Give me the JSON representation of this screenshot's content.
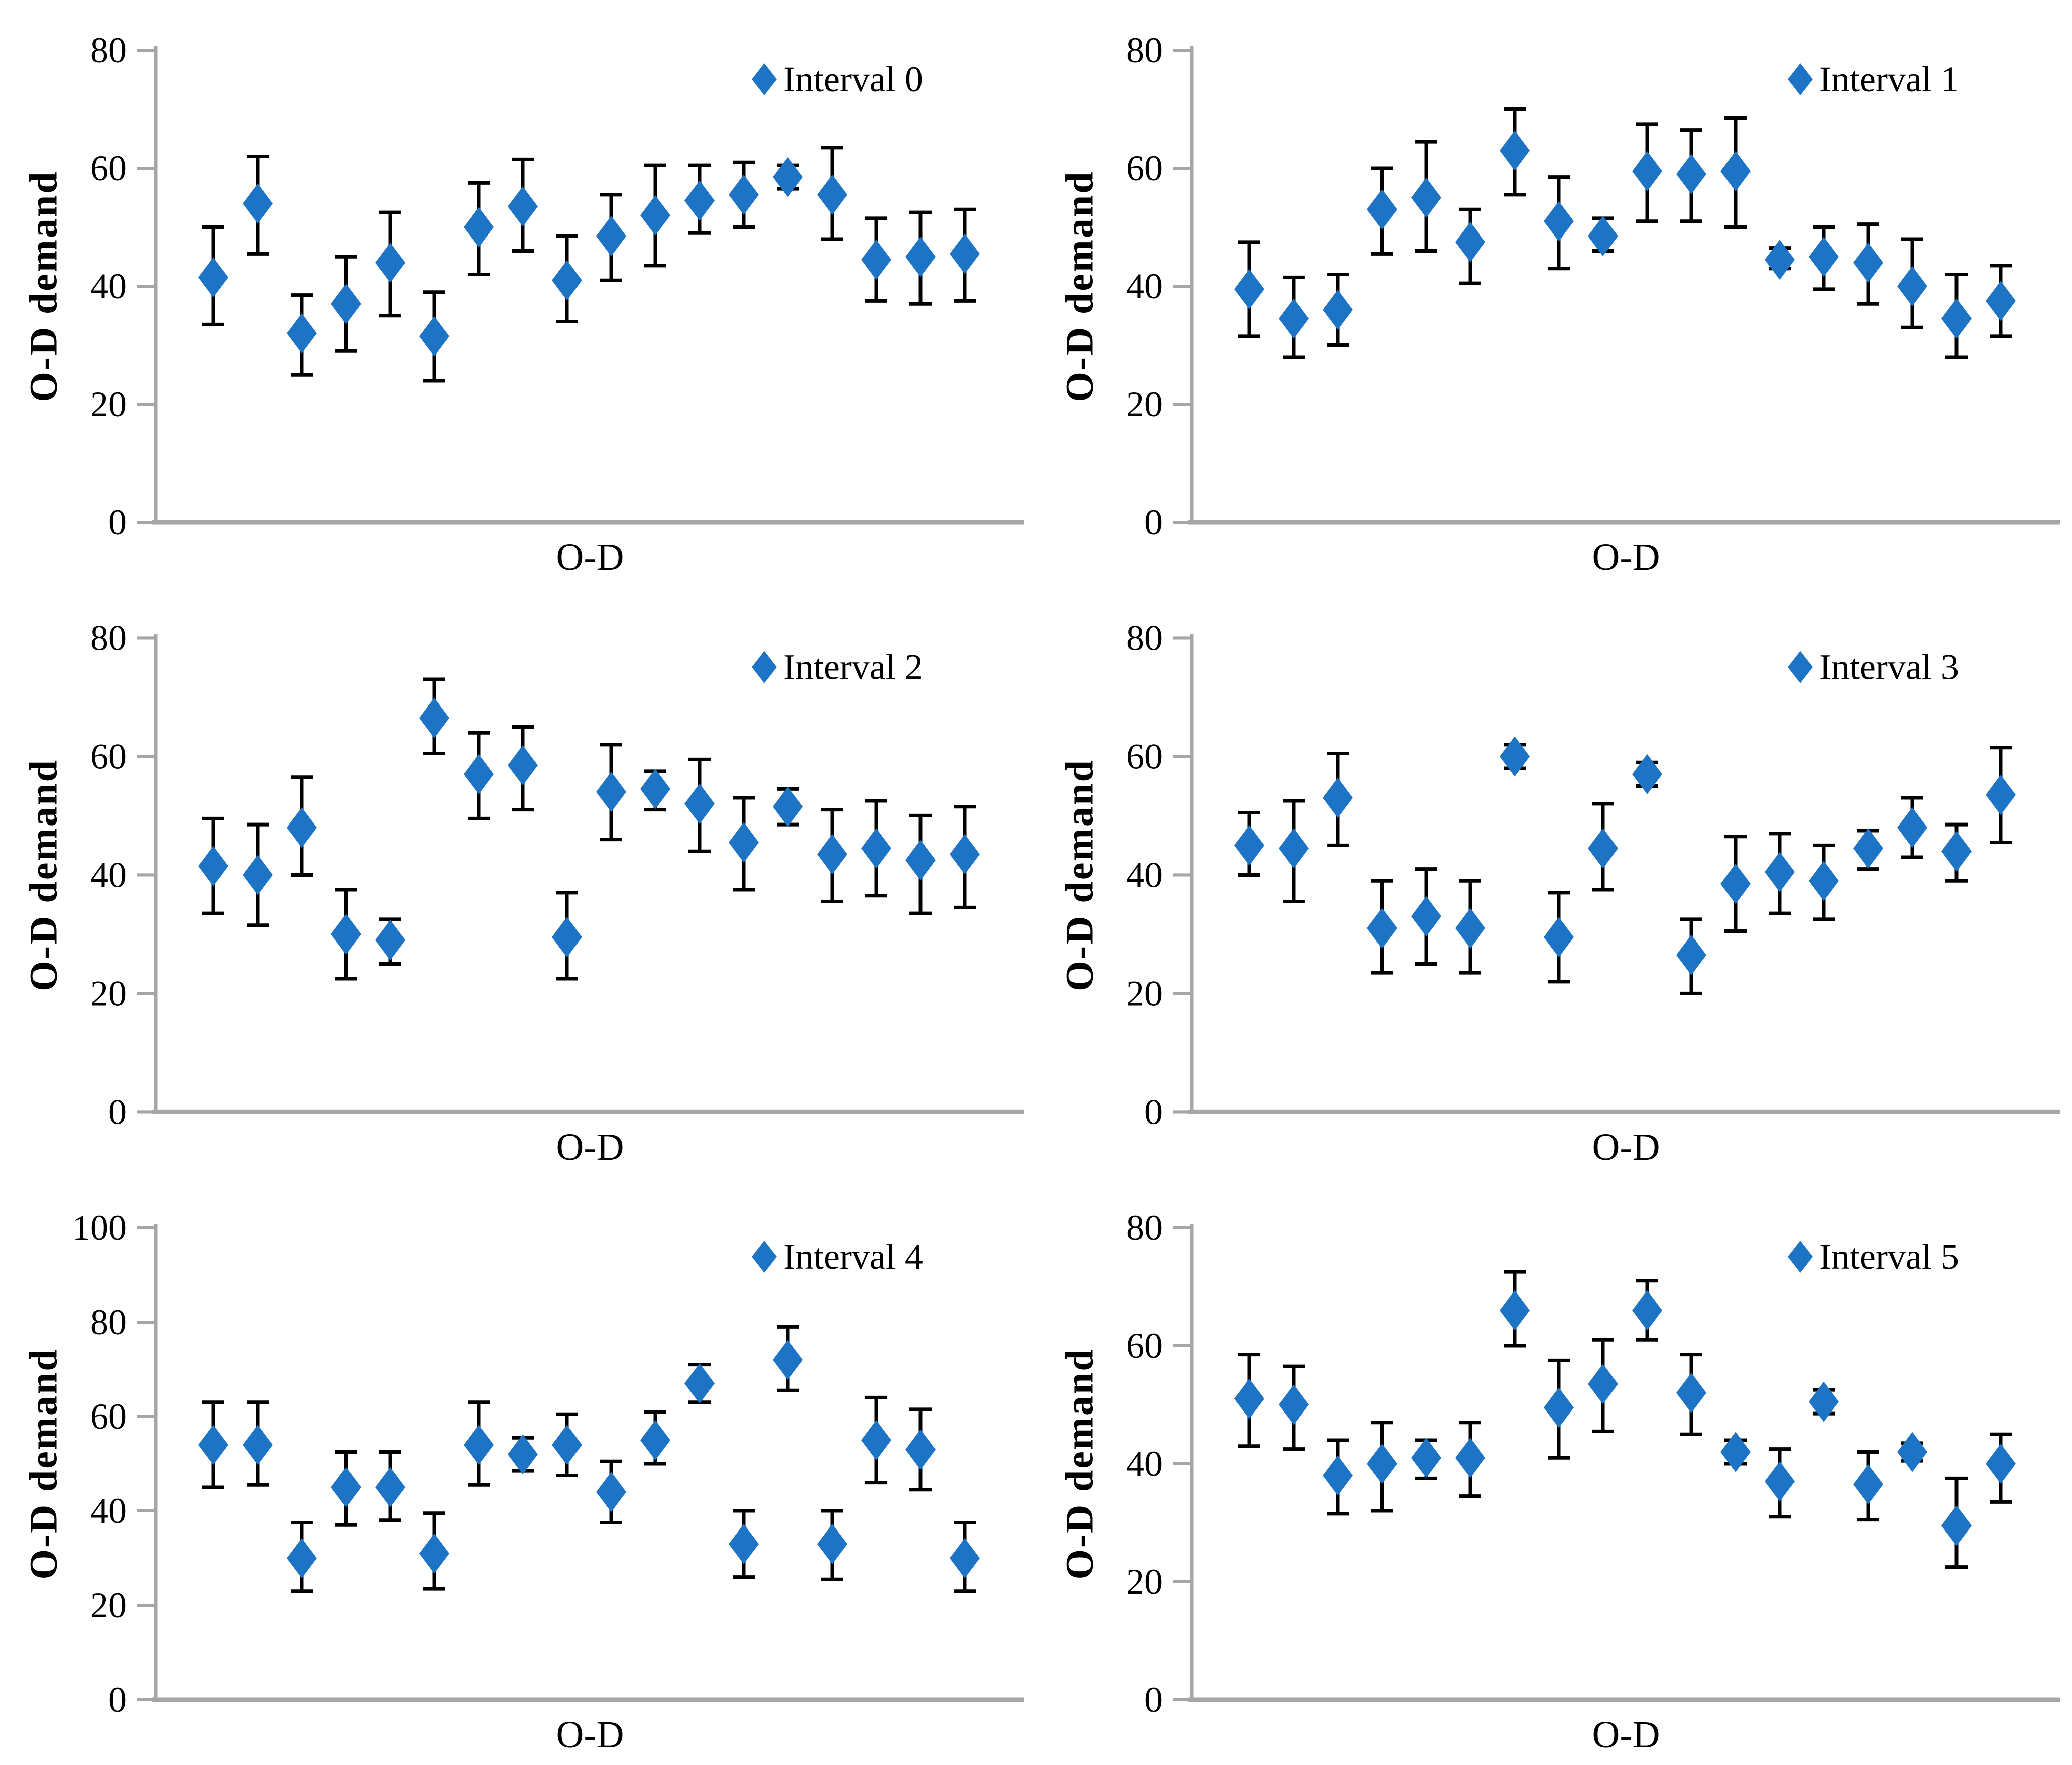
{
  "figure": {
    "marker_color": "#1E74C4",
    "axis_color": "#A6A6A6",
    "error_bar_color": "#000000",
    "text_color": "#000000",
    "background": "#FFFFFF",
    "marker_shape": "diamond",
    "legend_position": "top-right",
    "grid": "off"
  },
  "chart_data": [
    {
      "type": "scatter",
      "legend": "Interval 0",
      "ylabel": "O-D demand",
      "xlabel": "O-D",
      "ylim": [
        0,
        80
      ],
      "yticks": [
        0,
        20,
        40,
        60,
        80
      ],
      "values": [
        41.5,
        54,
        32,
        37,
        44,
        31.5,
        50,
        53.5,
        41,
        48.5,
        52,
        54.5,
        55.5,
        58.5,
        55.5,
        44.5,
        45,
        45.5
      ],
      "err_low": [
        33.5,
        45.5,
        25,
        29,
        35,
        24,
        42,
        46,
        34,
        41,
        43.5,
        49,
        50,
        56.5,
        48,
        37.5,
        37,
        37.5
      ],
      "err_high": [
        50,
        62,
        38.5,
        45,
        52.5,
        39,
        57.5,
        61.5,
        48.5,
        55.5,
        60.5,
        60.5,
        61,
        60.5,
        63.5,
        51.5,
        52.5,
        53
      ]
    },
    {
      "type": "scatter",
      "legend": "Interval 1",
      "ylabel": "O-D demand",
      "xlabel": "O-D",
      "ylim": [
        0,
        80
      ],
      "yticks": [
        0,
        20,
        40,
        60,
        80
      ],
      "values": [
        39.5,
        34.5,
        36,
        53,
        55,
        47.5,
        63,
        51,
        48.5,
        59.5,
        59,
        59.5,
        44.5,
        45,
        44,
        40,
        34.5,
        37.5
      ],
      "err_low": [
        31.5,
        28,
        30,
        45.5,
        46,
        40.5,
        55.5,
        43,
        46,
        51,
        51,
        50,
        43,
        39.5,
        37,
        33,
        28,
        31.5
      ],
      "err_high": [
        47.5,
        41.5,
        42,
        60,
        64.5,
        53,
        70,
        58.5,
        51.5,
        67.5,
        66.5,
        68.5,
        46.5,
        50,
        50.5,
        48,
        42,
        43.5
      ]
    },
    {
      "type": "scatter",
      "legend": "Interval 2",
      "ylabel": "O-D demand",
      "xlabel": "O-D",
      "ylim": [
        0,
        80
      ],
      "yticks": [
        0,
        20,
        40,
        60,
        80
      ],
      "values": [
        41.5,
        40,
        48,
        30,
        29,
        66.5,
        57,
        58.5,
        29.5,
        54,
        54.5,
        52,
        45.5,
        51.5,
        43.5,
        44.5,
        42.5,
        43.5
      ],
      "err_low": [
        33.5,
        31.5,
        40,
        22.5,
        25,
        60.5,
        49.5,
        51,
        22.5,
        46,
        51,
        44,
        37.5,
        48.5,
        35.5,
        36.5,
        33.5,
        34.5
      ],
      "err_high": [
        49.5,
        48.5,
        56.5,
        37.5,
        32.5,
        73,
        64,
        65,
        37,
        62,
        57.5,
        59.5,
        53,
        54.5,
        51,
        52.5,
        50,
        51.5
      ]
    },
    {
      "type": "scatter",
      "legend": "Interval 3",
      "ylabel": "O-D demand",
      "xlabel": "O-D",
      "ylim": [
        0,
        80
      ],
      "yticks": [
        0,
        20,
        40,
        60,
        80
      ],
      "values": [
        45,
        44.5,
        53,
        31,
        33,
        31,
        60,
        29.5,
        44.5,
        57,
        26.5,
        38.5,
        40.5,
        39,
        44.5,
        48,
        44,
        53.5
      ],
      "err_low": [
        40,
        35.5,
        45,
        23.5,
        25,
        23.5,
        58,
        22,
        37.5,
        55,
        20,
        30.5,
        33.5,
        32.5,
        41,
        43,
        39,
        45.5
      ],
      "err_high": [
        50.5,
        52.5,
        60.5,
        39,
        41,
        39,
        62,
        37,
        52,
        59,
        32.5,
        46.5,
        47,
        45,
        47.5,
        53,
        48.5,
        61.5
      ]
    },
    {
      "type": "scatter",
      "legend": "Interval 4",
      "ylabel": "O-D demand",
      "xlabel": "O-D",
      "ylim": [
        0,
        100
      ],
      "yticks": [
        0,
        20,
        40,
        60,
        80,
        100
      ],
      "values": [
        54,
        54,
        30,
        45,
        45,
        31,
        54,
        52,
        54,
        44,
        55,
        67,
        33,
        72,
        33,
        55,
        53,
        30
      ],
      "err_low": [
        45,
        45.5,
        23,
        37,
        38,
        23.5,
        45.5,
        48.5,
        47.5,
        37.5,
        50,
        63,
        26,
        65.5,
        25.5,
        46,
        44.5,
        23
      ],
      "err_high": [
        63,
        63,
        37.5,
        52.5,
        52.5,
        39.5,
        63,
        55.5,
        60.5,
        50.5,
        61,
        71,
        40,
        79,
        40,
        64,
        61.5,
        37.5
      ]
    },
    {
      "type": "scatter",
      "legend": "Interval 5",
      "ylabel": "O-D demand",
      "xlabel": "O-D",
      "ylim": [
        0,
        80
      ],
      "yticks": [
        0,
        20,
        40,
        60,
        80
      ],
      "values": [
        51,
        50,
        38,
        40,
        41,
        41,
        66,
        49.5,
        53.5,
        66,
        52,
        42,
        37,
        50.5,
        36.5,
        42,
        29.5,
        40
      ],
      "err_low": [
        43,
        42.5,
        31.5,
        32,
        37.5,
        34.5,
        60,
        41,
        45.5,
        61,
        45,
        40,
        31,
        48.5,
        30.5,
        40.5,
        22.5,
        33.5
      ],
      "err_high": [
        58.5,
        56.5,
        44,
        47,
        44,
        47,
        72.5,
        57.5,
        61,
        71,
        58.5,
        44,
        42.5,
        52.5,
        42,
        43.5,
        37.5,
        45
      ]
    }
  ]
}
